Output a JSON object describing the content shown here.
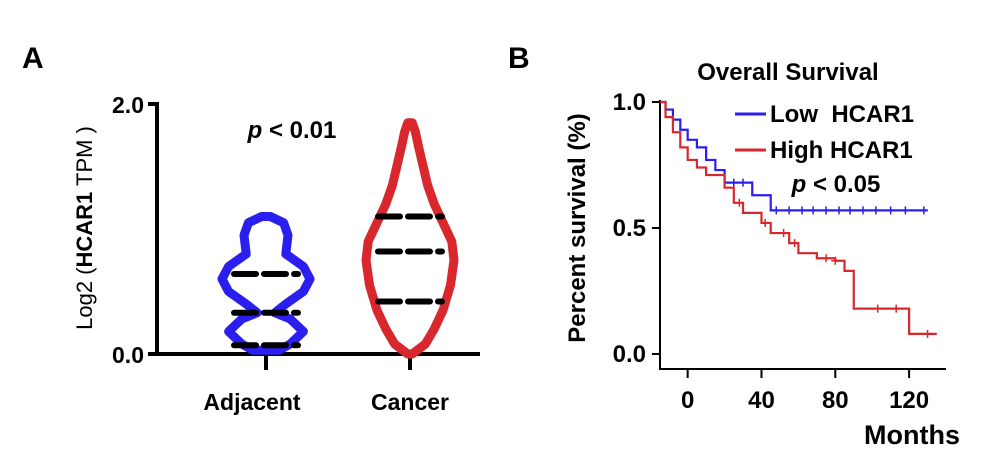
{
  "panels": {
    "a_label": "A",
    "b_label": "B"
  },
  "chart_data": [
    {
      "type": "violin",
      "ylabel_prefix": "Log2 (",
      "ylabel_gene": "HCAR1",
      "ylabel_suffix": " TPM )",
      "ylim": [
        0.0,
        2.0
      ],
      "yticks": [
        "0.0",
        "2.0"
      ],
      "annotation": {
        "p_symbol": "p",
        "p_rest": " < 0.01"
      },
      "categories": [
        "Adjacent",
        "Cancer"
      ],
      "colors": {
        "Adjacent": "#2b1ff0",
        "Cancer": "#d9272e"
      },
      "groups": [
        {
          "name": "Adjacent",
          "min": 0.03,
          "max": 1.1,
          "median": 0.33,
          "q1": 0.07,
          "q3": 0.64,
          "profile": [
            [
              0.03,
              0.3
            ],
            [
              0.08,
              0.55
            ],
            [
              0.18,
              0.85
            ],
            [
              0.28,
              0.55
            ],
            [
              0.33,
              0.2
            ],
            [
              0.4,
              0.45
            ],
            [
              0.5,
              0.85
            ],
            [
              0.6,
              1.0
            ],
            [
              0.7,
              0.85
            ],
            [
              0.8,
              0.45
            ],
            [
              0.95,
              0.5
            ],
            [
              1.05,
              0.4
            ],
            [
              1.1,
              0.1
            ]
          ]
        },
        {
          "name": "Cancer",
          "min": 0.0,
          "max": 1.85,
          "median": 0.82,
          "q1": 0.42,
          "q3": 1.1,
          "profile": [
            [
              0.0,
              0.05
            ],
            [
              0.08,
              0.35
            ],
            [
              0.2,
              0.55
            ],
            [
              0.35,
              0.75
            ],
            [
              0.55,
              0.92
            ],
            [
              0.75,
              1.0
            ],
            [
              0.9,
              0.95
            ],
            [
              1.05,
              0.75
            ],
            [
              1.2,
              0.55
            ],
            [
              1.35,
              0.4
            ],
            [
              1.5,
              0.3
            ],
            [
              1.65,
              0.2
            ],
            [
              1.78,
              0.12
            ],
            [
              1.85,
              0.05
            ]
          ]
        }
      ]
    },
    {
      "type": "line",
      "title": "Overall Survival",
      "xlabel": "Months",
      "ylabel": "Percent survival (%)",
      "xlim": [
        -15,
        140
      ],
      "ylim": [
        0.0,
        1.0
      ],
      "xticks": [
        "0",
        "40",
        "80",
        "120"
      ],
      "yticks": [
        "0.0",
        "0.5",
        "1.0"
      ],
      "annotation": {
        "p_symbol": "p",
        "p_rest": " < 0.05"
      },
      "legend_position": "top-right",
      "series": [
        {
          "name": "Low  HCAR1",
          "color": "#2b1ff0",
          "points": [
            [
              -15,
              1.0
            ],
            [
              -12,
              0.97
            ],
            [
              -8,
              0.93
            ],
            [
              -4,
              0.89
            ],
            [
              0,
              0.85
            ],
            [
              5,
              0.82
            ],
            [
              10,
              0.77
            ],
            [
              15,
              0.73
            ],
            [
              20,
              0.68
            ],
            [
              35,
              0.63
            ],
            [
              45,
              0.57
            ],
            [
              130,
              0.57
            ]
          ],
          "censored": [
            [
              48,
              0.57
            ],
            [
              55,
              0.57
            ],
            [
              62,
              0.57
            ],
            [
              68,
              0.57
            ],
            [
              75,
              0.57
            ],
            [
              82,
              0.57
            ],
            [
              88,
              0.57
            ],
            [
              95,
              0.57
            ],
            [
              102,
              0.57
            ],
            [
              110,
              0.57
            ],
            [
              118,
              0.57
            ],
            [
              128,
              0.57
            ],
            [
              25,
              0.68
            ],
            [
              30,
              0.68
            ]
          ]
        },
        {
          "name": "High HCAR1",
          "color": "#d9272e",
          "points": [
            [
              -15,
              1.0
            ],
            [
              -12,
              0.94
            ],
            [
              -8,
              0.88
            ],
            [
              -4,
              0.82
            ],
            [
              0,
              0.77
            ],
            [
              5,
              0.74
            ],
            [
              10,
              0.71
            ],
            [
              20,
              0.66
            ],
            [
              25,
              0.6
            ],
            [
              30,
              0.56
            ],
            [
              40,
              0.52
            ],
            [
              45,
              0.48
            ],
            [
              55,
              0.44
            ],
            [
              60,
              0.4
            ],
            [
              70,
              0.38
            ],
            [
              80,
              0.37
            ],
            [
              85,
              0.33
            ],
            [
              90,
              0.18
            ],
            [
              100,
              0.18
            ],
            [
              110,
              0.18
            ],
            [
              120,
              0.08
            ],
            [
              135,
              0.08
            ]
          ],
          "censored": [
            [
              28,
              0.6
            ],
            [
              42,
              0.52
            ],
            [
              52,
              0.48
            ],
            [
              58,
              0.44
            ],
            [
              75,
              0.38
            ],
            [
              80,
              0.37
            ],
            [
              103,
              0.18
            ],
            [
              113,
              0.18
            ],
            [
              130,
              0.08
            ]
          ]
        }
      ]
    }
  ]
}
